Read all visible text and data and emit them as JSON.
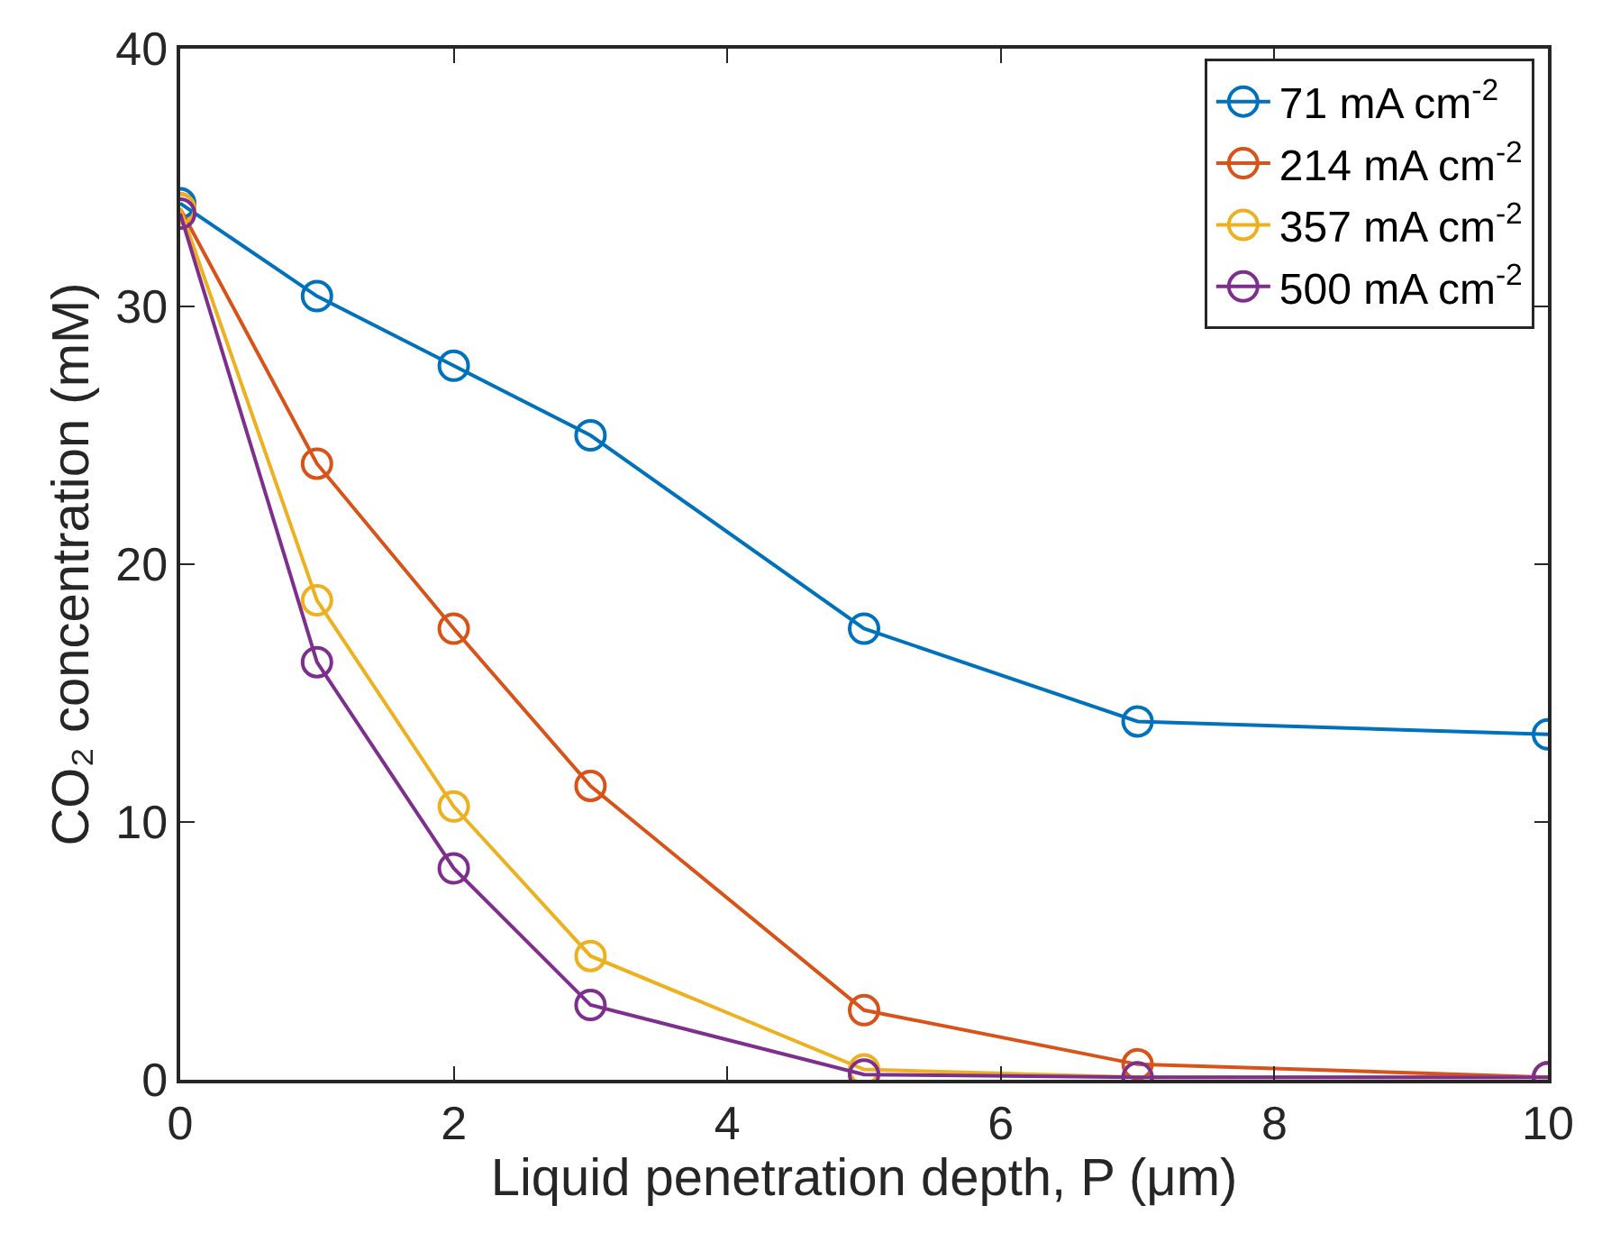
{
  "chart_data": {
    "type": "line",
    "xlabel": "Liquid penetration depth, P (μm)",
    "ylabel": "CO₂ concentration (mM)",
    "x": [
      0,
      1,
      2,
      3,
      5,
      7,
      10
    ],
    "series": [
      {
        "name": "71 mA cm$^{-2}$",
        "color": "#0072bd",
        "values": [
          34.0,
          30.4,
          27.7,
          25.0,
          17.5,
          13.9,
          13.4
        ]
      },
      {
        "name": "214 mA cm$^{-2}$",
        "color": "#d95319",
        "values": [
          33.8,
          23.9,
          17.5,
          11.4,
          2.7,
          0.6,
          0.1
        ]
      },
      {
        "name": "357 mA cm$^{-2}$",
        "color": "#edb120",
        "values": [
          33.8,
          18.6,
          10.6,
          4.8,
          0.4,
          0.1,
          0.1
        ]
      },
      {
        "name": "500 mA cm$^{-2}$",
        "color": "#7e2f8e",
        "values": [
          33.6,
          16.2,
          8.2,
          2.9,
          0.2,
          0.1,
          0.1
        ]
      }
    ],
    "xlim": [
      0,
      10
    ],
    "xticks": [
      0,
      2,
      4,
      6,
      8,
      10
    ],
    "ylim": [
      0,
      40
    ],
    "yticks": [
      0,
      10,
      20,
      30,
      40
    ],
    "legend": "top right",
    "marker": "circle",
    "line_style": "solid"
  }
}
